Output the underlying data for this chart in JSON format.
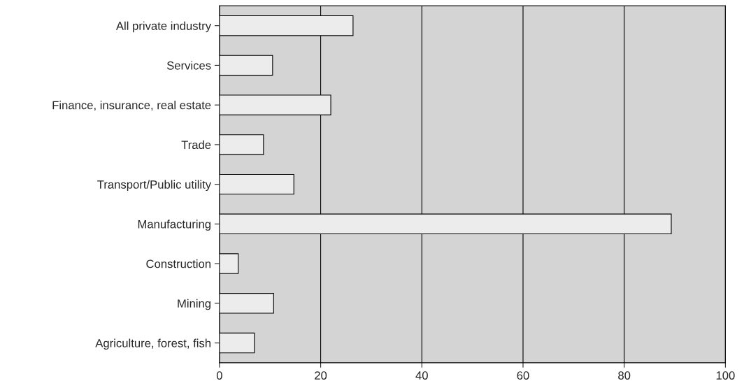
{
  "chart_data": {
    "type": "bar",
    "orientation": "horizontal",
    "categories": [
      "All private industry",
      "Services",
      "Finance, insurance, real estate",
      "Trade",
      "Transport/Public utility",
      "Manufacturing",
      "Construction",
      "Mining",
      "Agriculture, forest, fish"
    ],
    "values": [
      26.4,
      10.5,
      22,
      8.7,
      14.7,
      89.3,
      3.7,
      10.7,
      6.9
    ],
    "color": "#ececec",
    "xlim": [
      0,
      100
    ],
    "xticks": [
      0,
      20,
      40,
      60,
      80,
      100
    ],
    "grid": "x"
  }
}
